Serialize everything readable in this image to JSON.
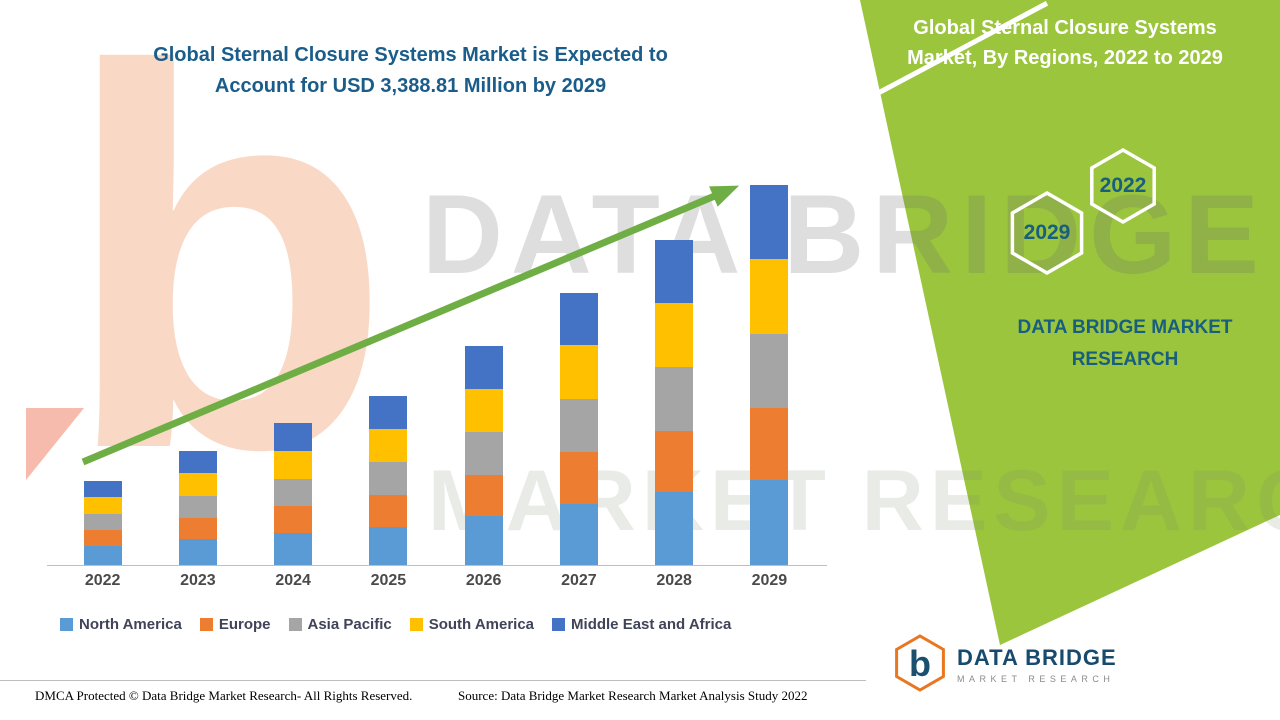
{
  "colors": {
    "panel_green": "#9bc53d",
    "title_blue": "#1b5d8a",
    "brand_navy": "#175e80",
    "arrow_green": "#6fae44",
    "logo_orange": "#e87722"
  },
  "header": {
    "left_title": "Global Sternal Closure Systems Market is Expected to Account for USD 3,388.81 Million by 2029"
  },
  "panel": {
    "title": "Global Sternal Closure Systems Market, By Regions, 2022 to 2029",
    "hexagons": [
      {
        "label": "2029"
      },
      {
        "label": "2022"
      }
    ],
    "brand": "DATA BRIDGE MARKET RESEARCH"
  },
  "watermark": {
    "letter": "b",
    "line1": "DATA BRIDGE",
    "line2": "MARKET RESEARCH"
  },
  "chart_data": {
    "type": "bar",
    "stacked": true,
    "title": "Global Sternal Closure Systems Market, By Regions, 2022 to 2029",
    "unit": "USD Million",
    "categories": [
      "2022",
      "2023",
      "2024",
      "2025",
      "2026",
      "2027",
      "2028",
      "2029"
    ],
    "series": [
      {
        "name": "North America",
        "color": "#5B9BD5",
        "values": [
          168,
          228,
          284,
          339,
          437,
          545,
          650,
          760
        ]
      },
      {
        "name": "Europe",
        "color": "#ED7D31",
        "values": [
          142,
          192,
          239,
          285,
          368,
          459,
          548,
          640
        ]
      },
      {
        "name": "Asia Pacific",
        "color": "#A5A5A5",
        "values": [
          146,
          198,
          247,
          294,
          380,
          474,
          566,
          660
        ]
      },
      {
        "name": "South America",
        "color": "#FFC000",
        "values": [
          149,
          201,
          250,
          299,
          386,
          481,
          574,
          670
        ]
      },
      {
        "name": "Middle East and Africa",
        "color": "#4472C4",
        "values": [
          145,
          196,
          245,
          293,
          379,
          471,
          562,
          658.81
        ]
      }
    ],
    "totals": [
      750,
      1015,
      1265,
      1510,
      1950,
      2430,
      2900,
      3388.81
    ],
    "highlight_value": "USD 3,388.81 Million by 2029",
    "ylim": [
      0,
      3600
    ],
    "grid": false,
    "legend_position": "bottom",
    "trend_arrow": true
  },
  "footer": {
    "dmca": "DMCA Protected © Data Bridge Market Research- All Rights Reserved.",
    "source": "Source: Data Bridge Market Research Market Analysis Study 2022",
    "logo_letter": "b",
    "logo_title": "DATA BRIDGE",
    "logo_subtitle": "MARKET RESEARCH"
  }
}
